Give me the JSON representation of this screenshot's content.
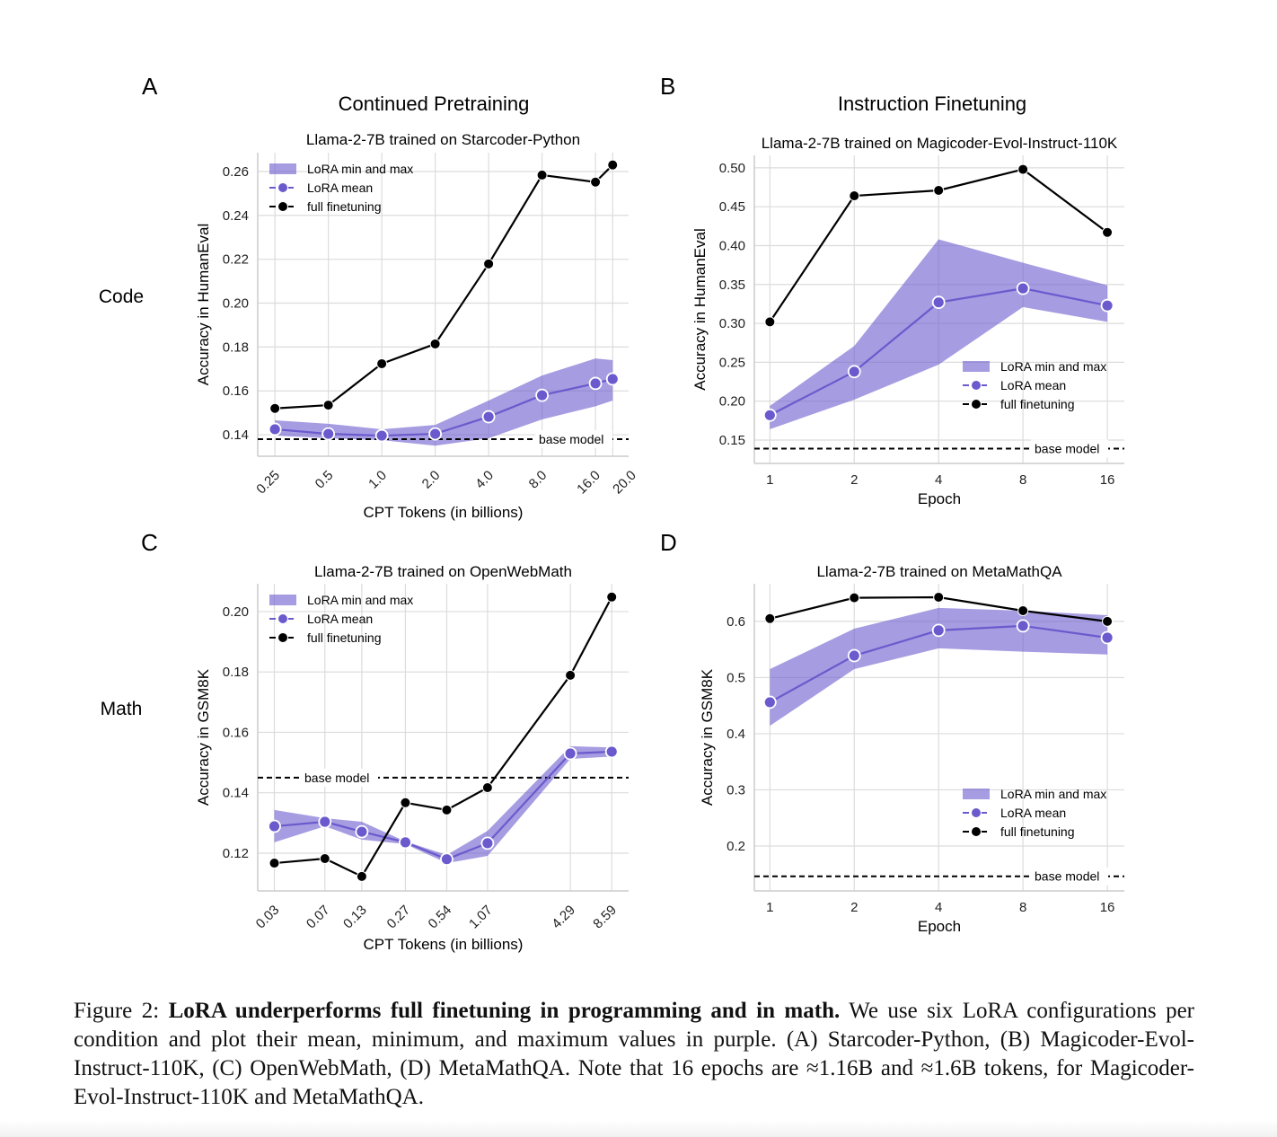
{
  "figure": {
    "panel_letters": [
      "A",
      "B",
      "C",
      "D"
    ],
    "column_titles": [
      "Continued Pretraining",
      "Instruction Finetuning"
    ],
    "row_labels": [
      "Code",
      "Math"
    ],
    "caption": {
      "label": "Figure 2:",
      "bold": "LoRA underperforms full finetuning in programming and in math.",
      "text": "We use six LoRA configurations per condition and plot their mean, minimum, and maximum values in purple. (A) Starcoder-Python, (B) Magicoder-Evol-Instruct-110K, (C) OpenWebMath, (D) MetaMathQA. Note that 16 epochs are ≈1.16B and ≈1.6B tokens, for Magicoder-Evol-Instruct-110K and MetaMathQA."
    }
  },
  "colors": {
    "lora": "#6a5acd",
    "full": "#000000",
    "grid": "#dcdcdc"
  },
  "chart_data": [
    {
      "type": "line",
      "panel": "A",
      "title": "Llama-2-7B trained on Starcoder-Python",
      "xlabel": "CPT Tokens (in billions)",
      "ylabel": "Accuracy in HumanEval",
      "xscale": "log2",
      "xlim": [
        0.2,
        24.6
      ],
      "ylim": [
        0.1302,
        0.2686
      ],
      "x": [
        0.25,
        0.5,
        1.0,
        2.0,
        4.0,
        8.0,
        16.0,
        20.0
      ],
      "xtick_labels": [
        "0.25",
        "0.5",
        "1.0",
        "2.0",
        "4.0",
        "8.0",
        "16.0",
        "20.0"
      ],
      "yticks": [
        0.14,
        0.16,
        0.18,
        0.2,
        0.22,
        0.24,
        0.26
      ],
      "ytick_labels": [
        "0.14",
        "0.16",
        "0.18",
        "0.20",
        "0.22",
        "0.24",
        "0.26"
      ],
      "series": [
        {
          "name": "full finetuning",
          "values": [
            0.152,
            0.1535,
            0.1724,
            0.1814,
            0.2179,
            0.2584,
            0.2552,
            0.263
          ]
        },
        {
          "name": "LoRA mean",
          "values": [
            0.1425,
            0.1404,
            0.1396,
            0.1404,
            0.1482,
            0.158,
            0.1634,
            0.1654
          ]
        },
        {
          "name": "LoRA min and max",
          "min": [
            0.1396,
            0.1384,
            0.1375,
            0.135,
            0.1384,
            0.147,
            0.153,
            0.1556
          ],
          "max": [
            0.1466,
            0.145,
            0.1425,
            0.1445,
            0.1556,
            0.167,
            0.1748,
            0.174
          ]
        }
      ],
      "base_model": {
        "label": "base model",
        "value": 0.138
      },
      "legend": "upper-left",
      "grid": true
    },
    {
      "type": "line",
      "panel": "B",
      "title": "Llama-2-7B trained on Magicoder-Evol-Instruct-110K",
      "xlabel": "Epoch",
      "ylabel": "Accuracy in HumanEval",
      "xscale": "log2",
      "xlim": [
        0.88,
        18.4
      ],
      "ylim": [
        0.12,
        0.516
      ],
      "x": [
        1,
        2,
        4,
        8,
        16
      ],
      "xtick_labels": [
        "1",
        "2",
        "4",
        "8",
        "16"
      ],
      "yticks": [
        0.15,
        0.2,
        0.25,
        0.3,
        0.35,
        0.4,
        0.45,
        0.5
      ],
      "ytick_labels": [
        "0.15",
        "0.20",
        "0.25",
        "0.30",
        "0.35",
        "0.40",
        "0.45",
        "0.50"
      ],
      "series": [
        {
          "name": "full finetuning",
          "values": [
            0.302,
            0.464,
            0.471,
            0.498,
            0.417
          ]
        },
        {
          "name": "LoRA mean",
          "values": [
            0.182,
            0.238,
            0.327,
            0.345,
            0.323
          ]
        },
        {
          "name": "LoRA min and max",
          "min": [
            0.164,
            0.202,
            0.247,
            0.321,
            0.302
          ],
          "max": [
            0.194,
            0.271,
            0.408,
            0.378,
            0.349
          ]
        }
      ],
      "base_model": {
        "label": "base model",
        "value": 0.139
      },
      "legend": "lower-right",
      "grid": true
    },
    {
      "type": "line",
      "panel": "C",
      "title": "Llama-2-7B trained on OpenWebMath",
      "xlabel": "CPT Tokens (in billions)",
      "ylabel": "Accuracy in GSM8K",
      "xscale": "log2",
      "xlim": [
        0.0227,
        11.4
      ],
      "ylim": [
        0.1075,
        0.2092
      ],
      "x": [
        0.03,
        0.07,
        0.13,
        0.27,
        0.54,
        1.07,
        4.29,
        8.59
      ],
      "xtick_labels": [
        "0.03",
        "0.07",
        "0.13",
        "0.27",
        "0.54",
        "1.07",
        "4.29",
        "8.59"
      ],
      "yticks": [
        0.12,
        0.14,
        0.16,
        0.18,
        0.2
      ],
      "ytick_labels": [
        "0.12",
        "0.14",
        "0.16",
        "0.18",
        "0.20"
      ],
      "series": [
        {
          "name": "full finetuning",
          "values": [
            0.1167,
            0.1182,
            0.1123,
            0.1367,
            0.1343,
            0.1417,
            0.1789,
            0.2048
          ]
        },
        {
          "name": "LoRA mean",
          "values": [
            0.1289,
            0.1304,
            0.1271,
            0.1236,
            0.118,
            0.1233,
            0.153,
            0.1536
          ]
        },
        {
          "name": "LoRA min and max",
          "min": [
            0.1236,
            0.1289,
            0.1245,
            0.123,
            0.1167,
            0.1191,
            0.1512,
            0.152
          ],
          "max": [
            0.1343,
            0.1316,
            0.1304,
            0.1239,
            0.1194,
            0.1274,
            0.1554,
            0.155
          ]
        }
      ],
      "base_model": {
        "label": "base model",
        "value": 0.145
      },
      "legend": "upper-left",
      "grid": true
    },
    {
      "type": "line",
      "panel": "D",
      "title": "Llama-2-7B trained on MetaMathQA",
      "xlabel": "Epoch",
      "ylabel": "Accuracy in GSM8K",
      "xscale": "log2",
      "xlim": [
        0.88,
        18.4
      ],
      "ylim": [
        0.12,
        0.667
      ],
      "x": [
        1,
        2,
        4,
        8,
        16
      ],
      "xtick_labels": [
        "1",
        "2",
        "4",
        "8",
        "16"
      ],
      "yticks": [
        0.2,
        0.3,
        0.4,
        0.5,
        0.6
      ],
      "ytick_labels": [
        "0.2",
        "0.3",
        "0.4",
        "0.5",
        "0.6"
      ],
      "series": [
        {
          "name": "full finetuning",
          "values": [
            0.605,
            0.642,
            0.643,
            0.619,
            0.6
          ]
        },
        {
          "name": "LoRA mean",
          "values": [
            0.456,
            0.539,
            0.584,
            0.592,
            0.571
          ]
        },
        {
          "name": "LoRA min and max",
          "min": [
            0.414,
            0.515,
            0.552,
            0.546,
            0.541
          ],
          "max": [
            0.515,
            0.587,
            0.624,
            0.619,
            0.611
          ]
        }
      ],
      "base_model": {
        "label": "base model",
        "value": 0.146
      },
      "legend": "lower-right",
      "grid": true
    }
  ]
}
